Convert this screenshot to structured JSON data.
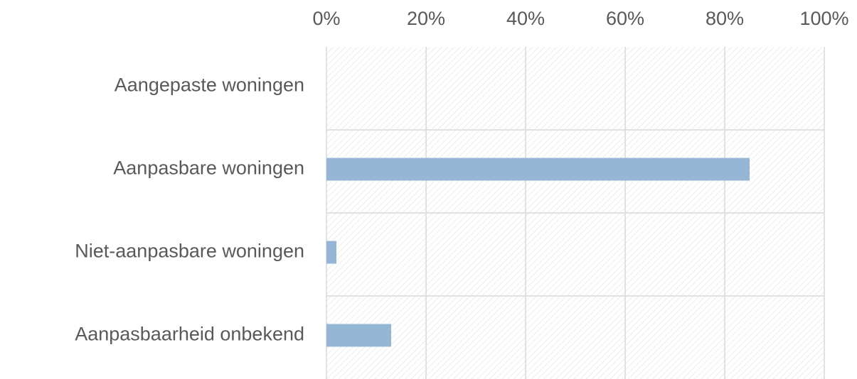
{
  "chart_data": {
    "type": "barh",
    "categories": [
      "Aangepaste woningen",
      "Aanpasbare woningen",
      "Niet-aanpasbare woningen",
      "Aanpasbaarheid onbekend"
    ],
    "values": [
      0,
      85,
      2,
      13
    ],
    "color": "#95b7d5",
    "xlim": [
      0,
      100
    ],
    "xticks": [
      {
        "value": 0,
        "label": "0%"
      },
      {
        "value": 20,
        "label": "20%"
      },
      {
        "value": 40,
        "label": "40%"
      },
      {
        "value": 60,
        "label": "60%"
      },
      {
        "value": 80,
        "label": "80%"
      },
      {
        "value": 100,
        "label": "100%"
      }
    ],
    "grid": true
  }
}
